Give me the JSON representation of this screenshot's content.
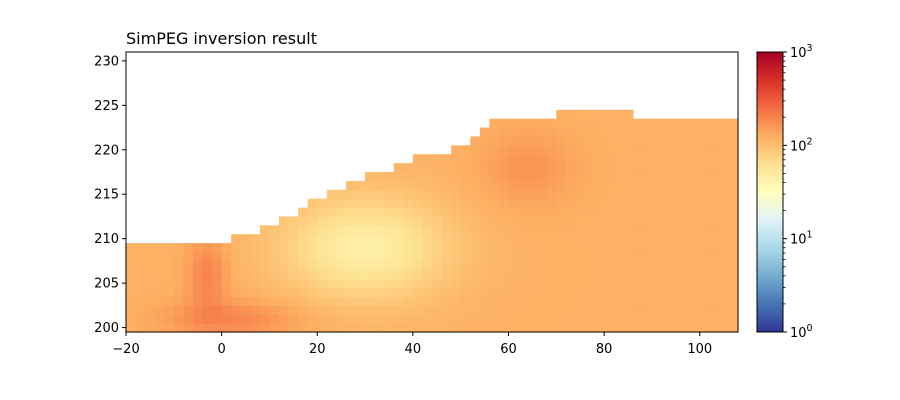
{
  "chart_data": {
    "type": "heatmap",
    "title": "SimPEG inversion result",
    "xlabel": "",
    "ylabel": "",
    "xlim": [
      -20,
      108
    ],
    "ylim": [
      199.5,
      231
    ],
    "x_ticks": [
      -20,
      0,
      20,
      40,
      60,
      80,
      100
    ],
    "y_ticks": [
      200,
      205,
      210,
      215,
      220,
      225,
      230
    ],
    "grid": false,
    "colormap": "RdYlBu_r",
    "color_scale": "log",
    "colorbar": {
      "range": [
        1,
        1000
      ],
      "ticks": [
        {
          "value": 1,
          "base": "10",
          "exp": "0"
        },
        {
          "value": 10,
          "base": "10",
          "exp": "1"
        },
        {
          "value": 100,
          "base": "10",
          "exp": "2"
        },
        {
          "value": 1000,
          "base": "10",
          "exp": "3"
        }
      ]
    },
    "surface_topography": [
      {
        "x": -20,
        "y": 209.5
      },
      {
        "x": 3,
        "y": 209.5
      },
      {
        "x": 3,
        "y": 210.5
      },
      {
        "x": 8,
        "y": 210.5
      },
      {
        "x": 8,
        "y": 211.5
      },
      {
        "x": 12,
        "y": 211.5
      },
      {
        "x": 12,
        "y": 212.5
      },
      {
        "x": 16,
        "y": 212.5
      },
      {
        "x": 16,
        "y": 213.5
      },
      {
        "x": 19,
        "y": 213.5
      },
      {
        "x": 19,
        "y": 214.5
      },
      {
        "x": 23,
        "y": 214.5
      },
      {
        "x": 23,
        "y": 215.5
      },
      {
        "x": 27,
        "y": 215.5
      },
      {
        "x": 27,
        "y": 216.5
      },
      {
        "x": 31,
        "y": 216.5
      },
      {
        "x": 31,
        "y": 217.5
      },
      {
        "x": 36,
        "y": 217.5
      },
      {
        "x": 36,
        "y": 218.5
      },
      {
        "x": 41,
        "y": 218.5
      },
      {
        "x": 41,
        "y": 219.5
      },
      {
        "x": 48,
        "y": 219.5
      },
      {
        "x": 48,
        "y": 220.5
      },
      {
        "x": 52,
        "y": 220.5
      },
      {
        "x": 52,
        "y": 221.5
      },
      {
        "x": 54,
        "y": 221.5
      },
      {
        "x": 54,
        "y": 222.5
      },
      {
        "x": 57,
        "y": 222.5
      },
      {
        "x": 57,
        "y": 223.5
      },
      {
        "x": 71,
        "y": 223.5
      },
      {
        "x": 71,
        "y": 224.5
      },
      {
        "x": 87,
        "y": 224.5
      },
      {
        "x": 87,
        "y": 223.5
      },
      {
        "x": 108,
        "y": 223.5
      }
    ],
    "model_bottom": 199.5,
    "background_resistivity": 120,
    "resistivity_features": [
      {
        "x": 30,
        "y": 209,
        "value": 45,
        "sx": 12,
        "sy": 4
      },
      {
        "x": -3,
        "y": 206,
        "value": 200,
        "sx": 3,
        "sy": 3
      },
      {
        "x": 2,
        "y": 201,
        "value": 190,
        "sx": 10,
        "sy": 1.5
      },
      {
        "x": 64,
        "y": 218,
        "value": 165,
        "sx": 7,
        "sy": 3
      }
    ]
  }
}
